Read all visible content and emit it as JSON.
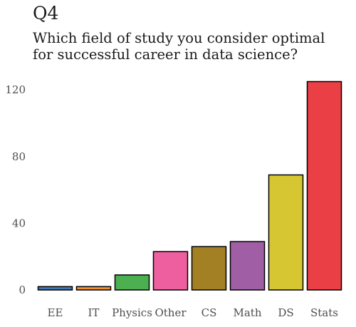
{
  "chart_data": {
    "type": "bar",
    "title": "Q4",
    "subtitle": "Which field of study you consider optimal for successful career in data science?",
    "categories": [
      "EE",
      "IT",
      "Physics",
      "Other",
      "CS",
      "Math",
      "DS",
      "Stats"
    ],
    "values": [
      2,
      2,
      9,
      23,
      26,
      29,
      69,
      125
    ],
    "colors": [
      "#3f78b4",
      "#f28e2b",
      "#4cb050",
      "#ee5fa0",
      "#a48025",
      "#a05fa5",
      "#d6c732",
      "#ea3f44"
    ],
    "yticks": [
      0,
      40,
      80,
      120
    ],
    "ylim": [
      0,
      130
    ],
    "xlabel": "",
    "ylabel": "",
    "grid": false,
    "legend": "none"
  }
}
